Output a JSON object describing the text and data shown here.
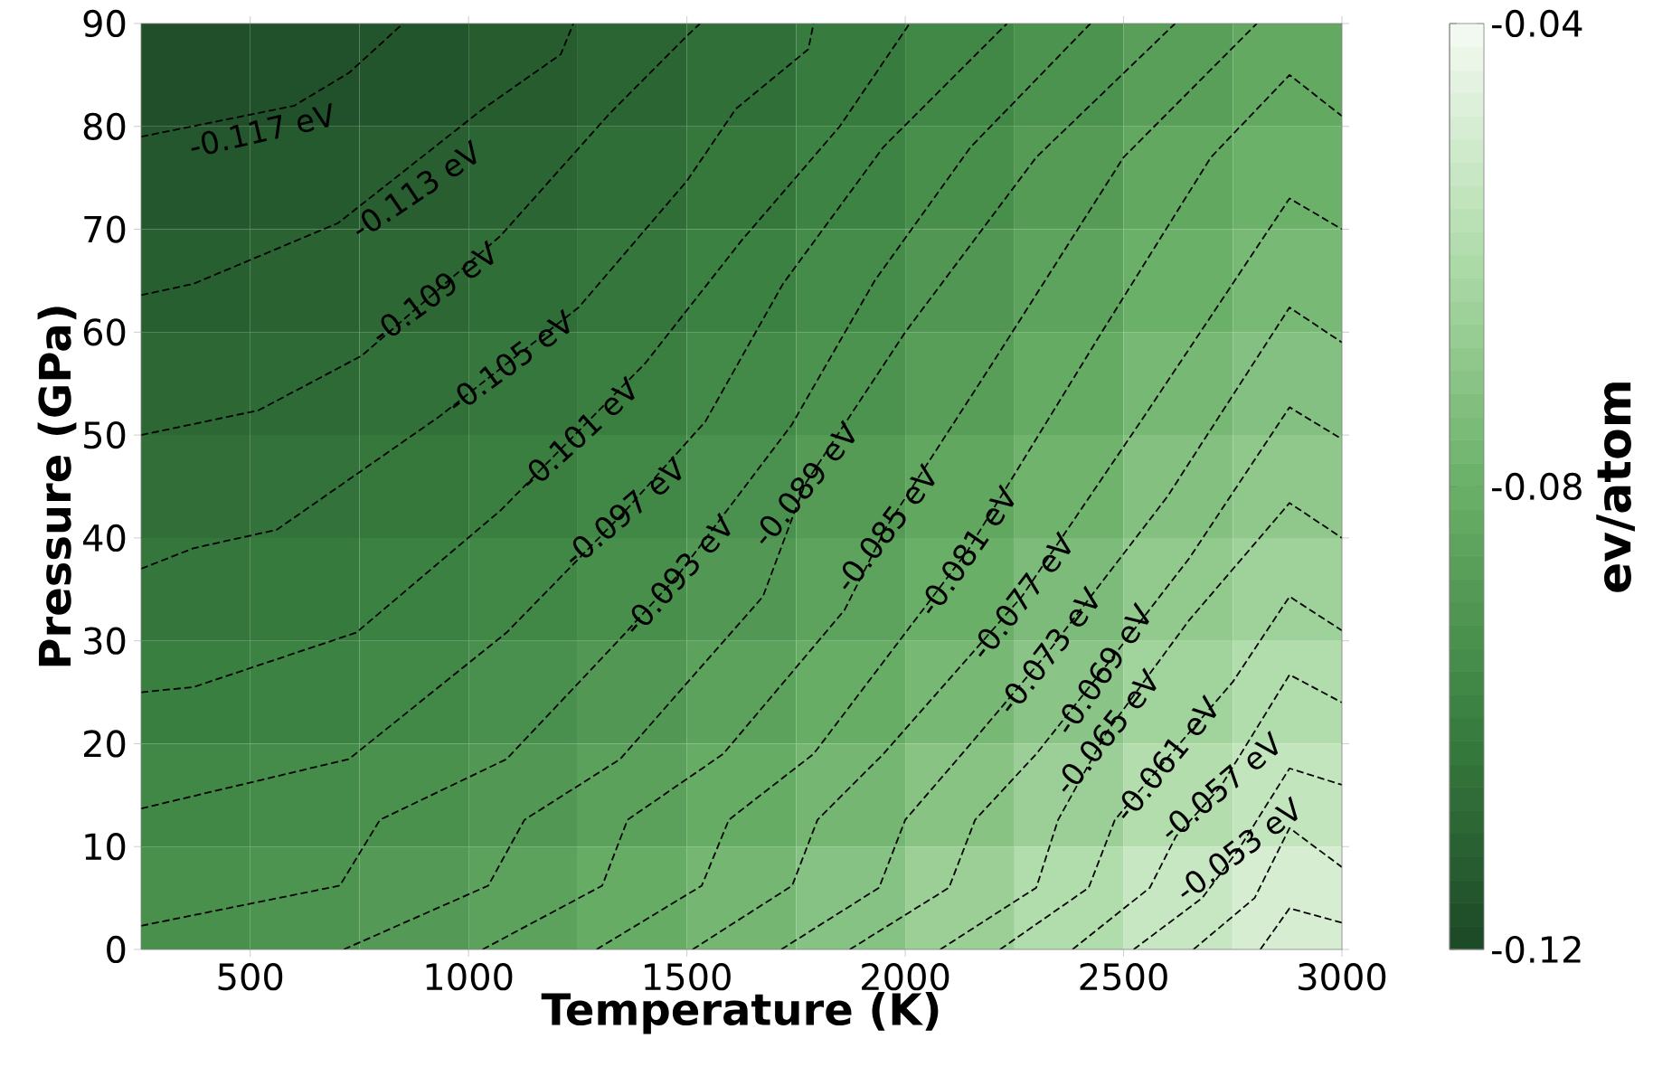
{
  "chart_data": {
    "type": "heatmap",
    "xlabel": "Temperature (K)",
    "ylabel": "Pressure (GPa)",
    "clabel": "ev/atom",
    "x": [
      375,
      625,
      875,
      1125,
      1375,
      1625,
      1875,
      2125,
      2375,
      2625,
      2875
    ],
    "y": [
      85,
      75,
      65,
      55,
      45,
      35,
      25,
      15,
      5
    ],
    "cells": [
      [
        -0.1174,
        -0.1168,
        -0.1152,
        -0.1127,
        -0.1097,
        -0.1059,
        -0.1018,
        -0.0972,
        -0.0922,
        -0.0869,
        -0.0828
      ],
      [
        -0.1146,
        -0.1138,
        -0.1121,
        -0.1096,
        -0.1065,
        -0.1028,
        -0.0986,
        -0.0939,
        -0.0888,
        -0.0833,
        -0.0794
      ],
      [
        -0.1118,
        -0.1108,
        -0.109,
        -0.1065,
        -0.1034,
        -0.0996,
        -0.0953,
        -0.0906,
        -0.0854,
        -0.0798,
        -0.076
      ],
      [
        -0.1091,
        -0.1079,
        -0.1058,
        -0.1033,
        -0.1003,
        -0.0964,
        -0.0921,
        -0.0873,
        -0.0819,
        -0.0762,
        -0.0725
      ],
      [
        -0.1063,
        -0.1049,
        -0.1027,
        -0.1002,
        -0.0972,
        -0.0932,
        -0.0889,
        -0.0839,
        -0.0785,
        -0.0726,
        -0.0691
      ],
      [
        -0.1034,
        -0.102,
        -0.0997,
        -0.097,
        -0.0938,
        -0.0898,
        -0.0853,
        -0.0803,
        -0.0748,
        -0.0687,
        -0.0648
      ],
      [
        -0.1005,
        -0.099,
        -0.0966,
        -0.0936,
        -0.0901,
        -0.086,
        -0.0814,
        -0.0763,
        -0.0708,
        -0.0642,
        -0.0597
      ],
      [
        -0.0972,
        -0.0956,
        -0.0931,
        -0.0898,
        -0.0861,
        -0.0818,
        -0.077,
        -0.0715,
        -0.0658,
        -0.0591,
        -0.0545
      ],
      [
        -0.0934,
        -0.0917,
        -0.089,
        -0.0857,
        -0.0817,
        -0.0771,
        -0.0719,
        -0.066,
        -0.0598,
        -0.0534,
        -0.0492
      ]
    ],
    "xlim": [
      250,
      3000
    ],
    "ylim": [
      0,
      90
    ],
    "xticks": [
      500,
      1000,
      1500,
      2000,
      2500,
      3000
    ],
    "yticks": [
      0,
      10,
      20,
      30,
      40,
      50,
      60,
      70,
      80,
      90
    ],
    "clim": [
      -0.12,
      -0.04
    ],
    "cticks": [
      -0.12,
      -0.08,
      -0.04
    ],
    "line_style": "dashed",
    "series": [
      {
        "type": "line",
        "color": "#000000",
        "x": [
          250,
          600,
          726,
          850
        ],
        "values": [
          79,
          82,
          85.2,
          90
        ]
      },
      {
        "type": "line",
        "color": "#000000",
        "x": [
          250,
          370,
          701,
          1033,
          1211,
          1240
        ],
        "values": [
          63.6,
          64.7,
          70.6,
          81.7,
          87,
          90
        ]
      },
      {
        "type": "line",
        "color": "#000000",
        "x": [
          250,
          519,
          755,
          1074,
          1322,
          1500,
          1530
        ],
        "values": [
          50,
          52.4,
          57.7,
          69.4,
          81.2,
          88.8,
          90
        ]
      },
      {
        "type": "line",
        "color": "#000000",
        "x": [
          250,
          370,
          561,
          933,
          1252,
          1500,
          1612,
          1778,
          1790
        ],
        "values": [
          37,
          39,
          40.8,
          51.8,
          62.4,
          74.7,
          81.7,
          87.5,
          90
        ]
      },
      {
        "type": "line",
        "color": "#000000",
        "x": [
          250,
          370,
          743,
          1074,
          1405,
          1625,
          1850,
          2010
        ],
        "values": [
          25,
          25.5,
          30.8,
          42.7,
          57,
          68.9,
          80,
          90
        ]
      },
      {
        "type": "line",
        "color": "#000000",
        "x": [
          250,
          726,
          1087,
          1356,
          1542,
          1720,
          1950,
          2233
        ],
        "values": [
          13.7,
          18.5,
          30.8,
          42.5,
          51.3,
          64.7,
          78,
          90
        ]
      },
      {
        "type": "line",
        "color": "#000000",
        "x": [
          250,
          705,
          797,
          1087,
          1347,
          1480,
          1740,
          1930,
          2150,
          2424
        ],
        "values": [
          2.3,
          6.2,
          12.6,
          18.5,
          30.2,
          36.4,
          51,
          65,
          78,
          90
        ]
      },
      {
        "type": "line",
        "color": "#000000",
        "x": [
          714,
          1045,
          1128,
          1347,
          1674,
          1770,
          2000,
          2300,
          2618
        ],
        "values": [
          0,
          6.2,
          12.6,
          18.5,
          34.3,
          45.2,
          60,
          77,
          90
        ]
      },
      {
        "type": "line",
        "color": "#000000",
        "x": [
          1032,
          1306,
          1364,
          1583,
          1861,
          1956,
          2200,
          2500,
          2805
        ],
        "values": [
          0,
          6.2,
          12.6,
          19,
          33,
          41,
          57,
          77,
          90
        ]
      },
      {
        "type": "line",
        "color": "#000000",
        "x": [
          1293,
          1534,
          1596,
          1790,
          2142,
          2450,
          2700,
          2880,
          3000
        ],
        "values": [
          0,
          6.2,
          12.6,
          19,
          38.7,
          60,
          77,
          85,
          81
        ]
      },
      {
        "type": "line",
        "color": "#000000",
        "x": [
          1513,
          1741,
          1799,
          1950,
          2267,
          2550,
          2880,
          3000
        ],
        "values": [
          0,
          6.2,
          12.6,
          19,
          34.3,
          52,
          73,
          70
        ]
      },
      {
        "type": "line",
        "color": "#000000",
        "x": [
          1716,
          1940,
          2000,
          2150,
          2329,
          2600,
          2880,
          3000
        ],
        "values": [
          0,
          6,
          12.6,
          20,
          29,
          44,
          62.4,
          59
        ]
      },
      {
        "type": "line",
        "color": "#000000",
        "x": [
          1873,
          2100,
          2160,
          2300,
          2453,
          2650,
          2880,
          3000
        ],
        "values": [
          0,
          6,
          12.6,
          19,
          27.2,
          38,
          52.7,
          49.6
        ]
      },
      {
        "type": "line",
        "color": "#000000",
        "x": [
          2080,
          2300,
          2350,
          2461,
          2650,
          2880,
          3000
        ],
        "values": [
          0,
          6,
          12.6,
          21.1,
          32,
          43.4,
          40
        ]
      },
      {
        "type": "line",
        "color": "#000000",
        "x": [
          2217,
          2420,
          2480,
          2598,
          2750,
          2880,
          3000
        ],
        "values": [
          0,
          6,
          12.6,
          18.5,
          26,
          34.3,
          31
        ]
      },
      {
        "type": "line",
        "color": "#000000",
        "x": [
          2383,
          2560,
          2620,
          2722,
          2880,
          3000
        ],
        "values": [
          0,
          6,
          11,
          15.8,
          26.7,
          24
        ]
      },
      {
        "type": "line",
        "color": "#000000",
        "x": [
          2523,
          2680,
          2763,
          2880,
          3000
        ],
        "values": [
          0,
          5,
          9.7,
          17.6,
          16
        ]
      },
      {
        "type": "line",
        "color": "#000000",
        "x": [
          2660,
          2800,
          2880,
          3000
        ],
        "values": [
          0,
          5,
          11.8,
          8
        ]
      },
      {
        "type": "line",
        "color": "#000000",
        "x": [
          2813,
          2880,
          3000
        ],
        "values": [
          0,
          4,
          2.6
        ]
      }
    ],
    "annotations": [
      "-0.117 eV",
      "-0.113 eV",
      "-0.109 eV",
      "-0.105 eV",
      "-0.101 eV",
      "-0.097 eV",
      "-0.093 eV",
      "-0.089 eV",
      "-0.085 eV",
      "-0.081 eV",
      "-0.077 eV",
      "-0.073 eV",
      "-0.069 eV",
      "-0.065 eV",
      "-0.061 eV",
      "-0.057 eV",
      "-0.053 eV"
    ]
  }
}
